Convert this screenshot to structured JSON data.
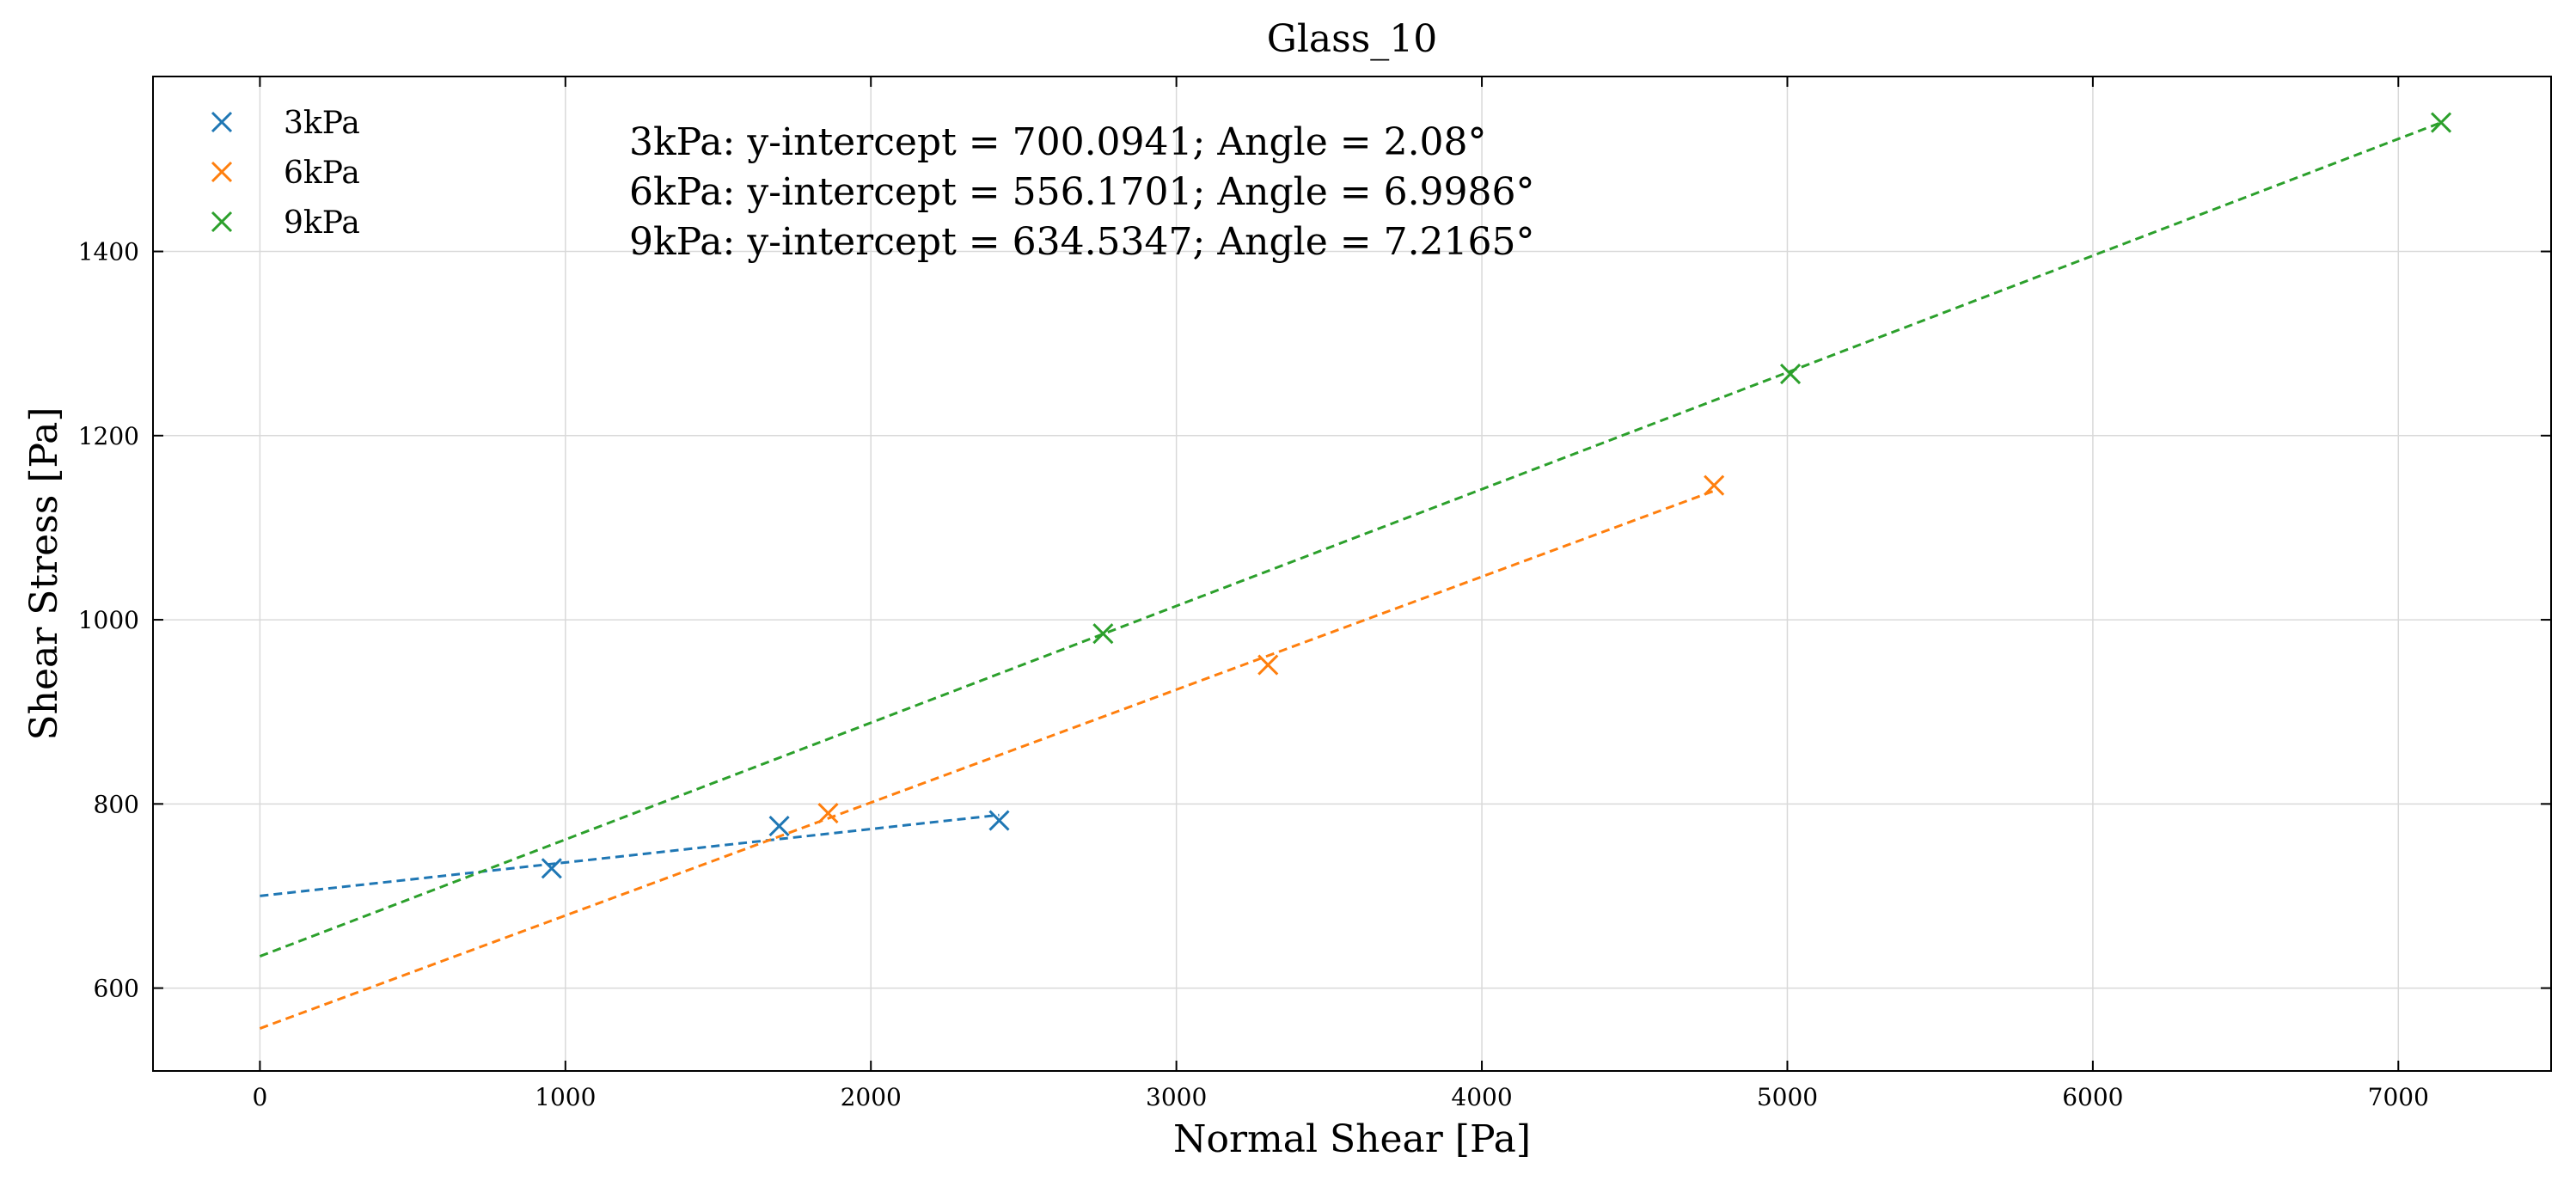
{
  "chart_data": {
    "type": "scatter",
    "title": "Glass_10",
    "xlabel": "Normal Shear [Pa]",
    "ylabel": "Shear Stress [Pa]",
    "xlim": [
      -350,
      7500
    ],
    "ylim": [
      510,
      1590
    ],
    "xticks": [
      0,
      1000,
      2000,
      3000,
      4000,
      5000,
      6000,
      7000
    ],
    "yticks": [
      600,
      800,
      1000,
      1200,
      1400
    ],
    "grid": true,
    "legend_position": "upper-left",
    "series": [
      {
        "name": "3kPa",
        "color": "#1f77b4",
        "marker": "x",
        "points": [
          [
            955,
            730
          ],
          [
            1700,
            776
          ],
          [
            2420,
            782
          ]
        ],
        "fit": {
          "x0": 0,
          "y0": 700.0941,
          "x1": 2420,
          "y1": 788
        }
      },
      {
        "name": "6kPa",
        "color": "#ff7f0e",
        "marker": "x",
        "points": [
          [
            1860,
            790
          ],
          [
            3300,
            951
          ],
          [
            4760,
            1146
          ]
        ],
        "fit": {
          "x0": 0,
          "y0": 556.1701,
          "x1": 4760,
          "y1": 1140
        }
      },
      {
        "name": "9kPa",
        "color": "#2ca02c",
        "marker": "x",
        "points": [
          [
            2760,
            985
          ],
          [
            5010,
            1267
          ],
          [
            7140,
            1540
          ]
        ],
        "fit": {
          "x0": 0,
          "y0": 634.5347,
          "x1": 7140,
          "y1": 1540
        }
      }
    ],
    "annotations": [
      "3kPa: y-intercept = 700.0941; Angle = 2.08°",
      "6kPa: y-intercept = 556.1701; Angle = 6.9986°",
      "9kPa: y-intercept = 634.5347; Angle = 7.2165°"
    ]
  }
}
